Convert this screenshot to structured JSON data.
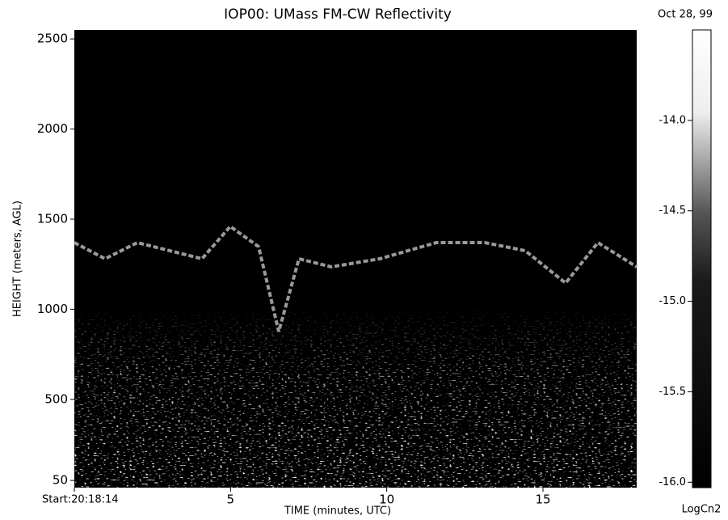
{
  "chart_data": {
    "type": "radar-image",
    "title": "IOP00: UMass FM-CW Reflectivity",
    "date": "Oct 28, 99",
    "x_label": "TIME (minutes, UTC)",
    "y_label": "HEIGHT (meters, AGL)",
    "colorbar_label": "LogCn2",
    "xlim": [
      0,
      18
    ],
    "xticks": [
      {
        "value": 0,
        "label": "Start:20:18:14"
      },
      5,
      10,
      15
    ],
    "ylim": [
      10,
      2550
    ],
    "yticks": [
      50,
      500,
      1000,
      1500,
      2000,
      2500
    ],
    "clim": [
      -16.03,
      -13.5
    ],
    "cticks": [
      {
        "value": -16,
        "label": "-16.0"
      },
      {
        "value": -15.5,
        "label": "-15.5"
      },
      {
        "value": -15,
        "label": "-15.0"
      },
      {
        "value": -14.5,
        "label": "-14.5"
      },
      {
        "value": -14,
        "label": "-14.0"
      }
    ]
  }
}
